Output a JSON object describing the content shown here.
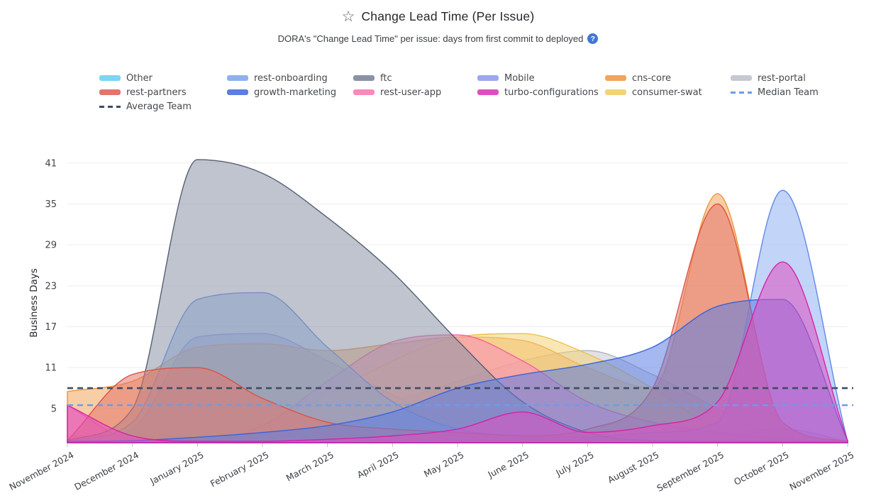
{
  "header": {
    "star_icon": "☆",
    "title": "Change Lead Time (Per Issue)",
    "subtitle": "DORA's \"Change Lead Time\" per issue: days from first commit to deployed",
    "help_icon": "?"
  },
  "chart_data": {
    "type": "area",
    "title": "Change Lead Time (Per Issue)",
    "xlabel": "",
    "ylabel": "Business Days",
    "x_labels": [
      "November 2024",
      "December 2024",
      "January 2025",
      "February 2025",
      "March 2025",
      "April 2025",
      "May 2025",
      "June 2025",
      "July 2025",
      "August 2025",
      "September 2025",
      "October 2025",
      "November 2025"
    ],
    "y_ticks": [
      5,
      11,
      17,
      23,
      29,
      35,
      41
    ],
    "ylim": [
      0,
      44
    ],
    "grid": "horizontal",
    "legend_position": "top",
    "series": [
      {
        "name": "Other",
        "color": "#7AD6F2",
        "stroke": "#49BCE4",
        "values": [
          0.5,
          0.3,
          0.2,
          0.2,
          0.2,
          0.2,
          0.2,
          0.2,
          0.2,
          0.2,
          0.2,
          0.2,
          0.1
        ]
      },
      {
        "name": "rest-onboarding",
        "color": "#8FB0F0",
        "stroke": "#5D85E6",
        "values": [
          0.2,
          3,
          21,
          22,
          14,
          6,
          2,
          1,
          0.8,
          1.5,
          3,
          37,
          0.2
        ]
      },
      {
        "name": "ftc",
        "color": "#8A93A6",
        "stroke": "#4E586E",
        "values": [
          0.3,
          5,
          41.5,
          39.5,
          33,
          25,
          15,
          6,
          1.5,
          0.3,
          0.2,
          0.2,
          0.1
        ]
      },
      {
        "name": "Mobile",
        "color": "#9DA6EE",
        "stroke": "#7A84E8",
        "values": [
          0.2,
          2,
          15.5,
          16,
          12,
          7,
          3,
          1.2,
          0.8,
          1,
          1.5,
          2,
          0.2
        ]
      },
      {
        "name": "cns-core",
        "color": "#F2A55C",
        "stroke": "#EE8F33",
        "values": [
          7.5,
          9,
          14,
          14.5,
          13.5,
          14.5,
          15.5,
          15,
          11,
          8,
          36.5,
          2.5,
          0.2
        ]
      },
      {
        "name": "rest-portal",
        "color": "#C6C9D2",
        "stroke": "#AAAEBA",
        "values": [
          1,
          1,
          1,
          1.5,
          3,
          6,
          9,
          12,
          13.5,
          10,
          5,
          0.5,
          0.2
        ]
      },
      {
        "name": "rest-partners",
        "color": "#E4756A",
        "stroke": "#DB4E41",
        "values": [
          0.3,
          10,
          11,
          6.5,
          3,
          2,
          1.5,
          1,
          2,
          8,
          35,
          3,
          0.2
        ]
      },
      {
        "name": "growth-marketing",
        "color": "#5B7EE4",
        "stroke": "#3560DB",
        "values": [
          0.2,
          0.3,
          0.8,
          1.5,
          2.5,
          4.5,
          8,
          10,
          11.5,
          14,
          20,
          21,
          0.3
        ]
      },
      {
        "name": "rest-user-app",
        "color": "#F78BBB",
        "stroke": "#F25C9E",
        "values": [
          5.5,
          0.5,
          0.3,
          2.5,
          9,
          14.8,
          15.8,
          12,
          6,
          3,
          1.5,
          0.5,
          0.2
        ]
      },
      {
        "name": "turbo-configurations",
        "color": "#E04FC0",
        "stroke": "#D61EA8",
        "values": [
          5.5,
          1,
          0.2,
          0.2,
          0.5,
          1,
          2,
          4.5,
          1.5,
          2.5,
          6,
          26.5,
          0.3
        ]
      },
      {
        "name": "consumer-swat",
        "color": "#F3D376",
        "stroke": "#ECBE43",
        "values": [
          0.3,
          0.5,
          1,
          2.5,
          7,
          12,
          15.5,
          16,
          13,
          8,
          2,
          0.5,
          0.1
        ]
      }
    ],
    "reference_lines": [
      {
        "name": "Average Team",
        "value": 8,
        "color": "#3D4C63",
        "style": "dashed"
      },
      {
        "name": "Median Team",
        "value": 5.5,
        "color": "#6D9BE8",
        "style": "dashed"
      }
    ],
    "legend_order": [
      "Other",
      "rest-onboarding",
      "ftc",
      "Mobile",
      "cns-core",
      "rest-portal",
      "rest-partners",
      "growth-marketing",
      "rest-user-app",
      "turbo-configurations",
      "consumer-swat",
      "Median Team",
      "Average Team"
    ],
    "draw_order": [
      "Other",
      "Mobile",
      "rest-portal",
      "cns-core",
      "consumer-swat",
      "rest-user-app",
      "rest-onboarding",
      "ftc",
      "rest-partners",
      "growth-marketing",
      "turbo-configurations"
    ]
  }
}
